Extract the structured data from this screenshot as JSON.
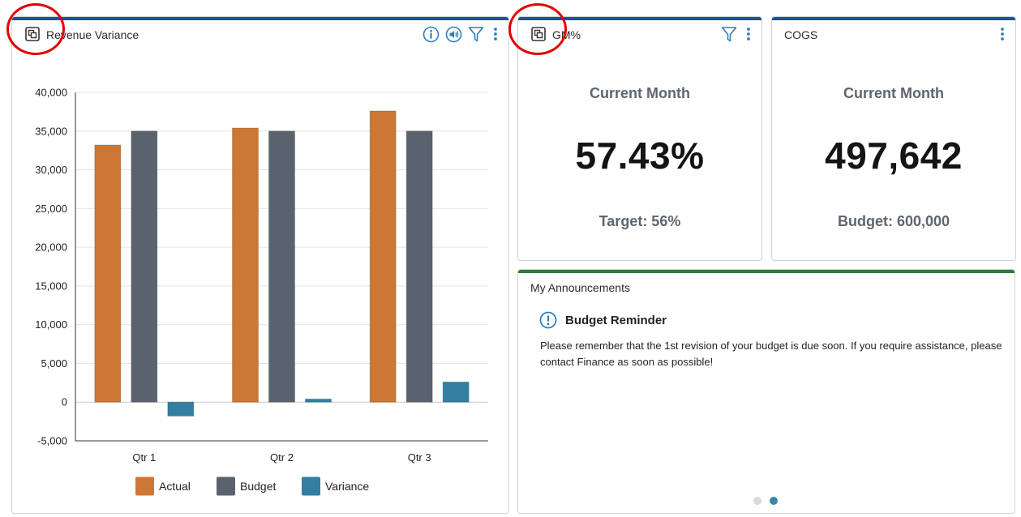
{
  "colors": {
    "blue_bar": "#1f4fa0",
    "green_bar": "#2c7a33",
    "actual": "#cd7735",
    "budget": "#5a636d",
    "variance": "#327fa1",
    "icon_blue": "#2f7ec1",
    "annotation_red": "#e00000"
  },
  "revenue_card": {
    "title": "Revenue Variance",
    "icons": [
      "expand-icon",
      "info-icon",
      "speaker-icon",
      "filter-icon",
      "more-vertical-icon"
    ]
  },
  "chart_data": {
    "type": "bar",
    "categories": [
      "Qtr 1",
      "Qtr 2",
      "Qtr 3"
    ],
    "series": [
      {
        "name": "Actual",
        "values": [
          33200,
          35400,
          37600
        ],
        "color": "#cd7735"
      },
      {
        "name": "Budget",
        "values": [
          35000,
          35000,
          35000
        ],
        "color": "#5a636d"
      },
      {
        "name": "Variance",
        "values": [
          -1800,
          400,
          2600
        ],
        "color": "#327fa1"
      }
    ],
    "ylim": [
      -5000,
      40000
    ],
    "yticks": [
      -5000,
      0,
      5000,
      10000,
      15000,
      20000,
      25000,
      30000,
      35000,
      40000
    ],
    "ytick_labels": [
      "-5,000",
      "0",
      "5,000",
      "10,000",
      "15,000",
      "20,000",
      "25,000",
      "30,000",
      "35,000",
      "40,000"
    ],
    "grid": true,
    "legend_position": "bottom"
  },
  "gm_card": {
    "title": "GM%",
    "heading": "Current Month",
    "value": "57.43%",
    "footer": "Target: 56%",
    "icons": [
      "expand-icon",
      "filter-icon",
      "more-vertical-icon"
    ]
  },
  "cogs_card": {
    "title": "COGS",
    "heading": "Current Month",
    "value": "497,642",
    "footer": "Budget: 600,000",
    "icons": [
      "more-vertical-icon"
    ]
  },
  "announcements": {
    "title": "My Announcements",
    "item_title": "Budget Reminder",
    "item_body": "Please remember that the 1st revision of your budget is due soon. If you require assistance, please contact Finance as soon as possible!",
    "page_count": 2,
    "active_page": 2
  }
}
